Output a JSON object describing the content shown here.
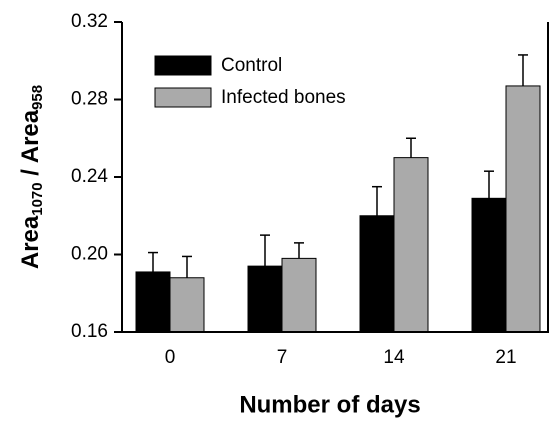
{
  "chart_data": {
    "type": "bar",
    "ylabel": [
      "Area",
      "1070",
      " / Area",
      "958"
    ],
    "xlabel": "Number of days",
    "categories": [
      "0",
      "7",
      "14",
      "21"
    ],
    "series": [
      {
        "name": "Control",
        "color": "#000000",
        "values": [
          0.191,
          0.194,
          0.22,
          0.229
        ],
        "errors": [
          0.01,
          0.016,
          0.015,
          0.014
        ]
      },
      {
        "name": "Infected bones",
        "color": "#aaaaaa",
        "values": [
          0.188,
          0.198,
          0.25,
          0.287
        ],
        "errors": [
          0.011,
          0.008,
          0.01,
          0.016
        ]
      }
    ],
    "ylim": [
      0.16,
      0.32
    ],
    "yticks": [
      0.16,
      {
        "value": 0.2,
        "label": "0.20"
      },
      0.24,
      0.28,
      0.32
    ],
    "legend": "upper left"
  }
}
